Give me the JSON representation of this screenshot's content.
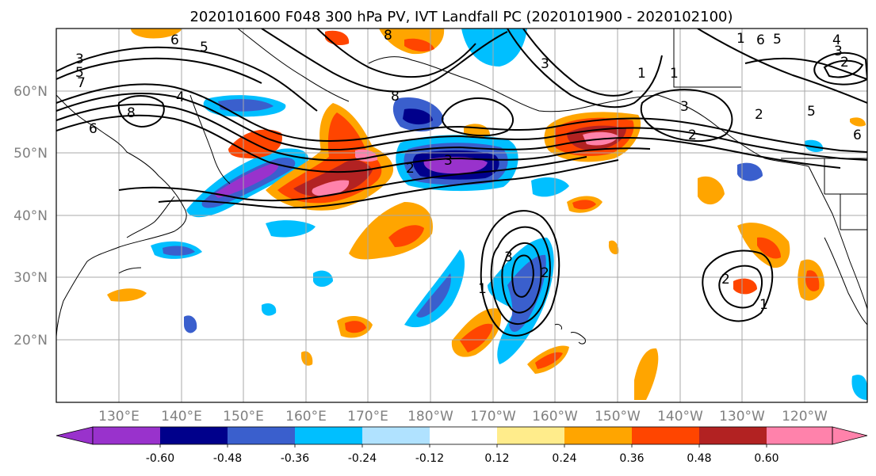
{
  "figure": {
    "title": "2020101600 F048 300 hPa PV, IVT Landfall PC (2020101900 - 2020102100)"
  },
  "latitude_labels": [
    "60°N",
    "50°N",
    "40°N",
    "30°N",
    "20°N"
  ],
  "longitude_labels": [
    "130°E",
    "140°E",
    "150°E",
    "160°E",
    "170°E",
    "180°W",
    "170°W",
    "160°W",
    "150°W",
    "140°W",
    "130°W",
    "120°W"
  ],
  "colorbar": {
    "colors": [
      "#9932cc",
      "#00008b",
      "#3a5fcd",
      "#00bfff",
      "#b0e2ff",
      "#ffffff",
      "#ffec8b",
      "#ffa500",
      "#ff4500",
      "#b22222",
      "#ff82ab"
    ],
    "tick_labels": [
      "-0.60",
      "-0.48",
      "-0.36",
      "-0.24",
      "-0.12",
      "0.12",
      "0.24",
      "0.36",
      "0.48",
      "0.60"
    ]
  },
  "contour_labels": [
    "6",
    "5",
    "3",
    "5",
    "7",
    "8",
    "6",
    "4",
    "8",
    "8",
    "3",
    "2",
    "3",
    "1",
    "2",
    "1",
    "3",
    "2",
    "1",
    "6",
    "5",
    "4",
    "3",
    "2",
    "5",
    "6",
    "3",
    "2",
    "1",
    "2",
    "1"
  ]
}
